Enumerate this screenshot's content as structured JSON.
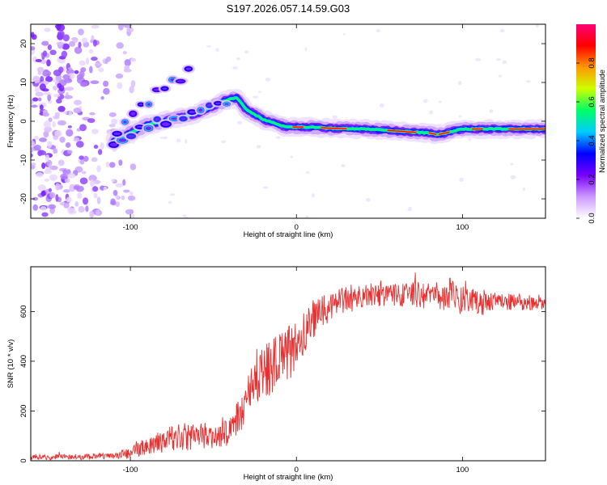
{
  "title": "S197.2026.057.14.59.G03",
  "chart_data": [
    {
      "type": "heatmap",
      "panel": "top",
      "xlabel": "Height of straight line (km)",
      "ylabel": "Frequency (Hz)",
      "xlim": [
        -160,
        150
      ],
      "ylim": [
        -25,
        25
      ],
      "xticks": [
        -100,
        0,
        100
      ],
      "xtick_labels": [
        "-100",
        "0",
        "100"
      ],
      "yticks": [
        -20,
        -10,
        0,
        10,
        20
      ],
      "ytick_labels": [
        "-20",
        "-10",
        "0",
        "10",
        "20"
      ],
      "colorbar": {
        "label": "Normalized spectral amplitude",
        "range": [
          0,
          1
        ],
        "ticks": [
          0.0,
          0.2,
          0.4,
          0.6,
          0.8
        ],
        "tick_labels": [
          "0.0",
          "0.2",
          "0.4",
          "0.6",
          "0.8"
        ],
        "colormap": [
          "#ffffff",
          "#cc99ff",
          "#7700ff",
          "#0000ff",
          "#00ccff",
          "#00ff66",
          "#ccff00",
          "#ff9900",
          "#ff0000",
          "#ff0077"
        ]
      },
      "main_track": [
        [
          -110,
          -5
        ],
        [
          -100,
          -3
        ],
        [
          -90,
          -1
        ],
        [
          -80,
          0
        ],
        [
          -70,
          1
        ],
        [
          -60,
          2
        ],
        [
          -50,
          4
        ],
        [
          -42,
          5.5
        ],
        [
          -36,
          6
        ],
        [
          -30,
          3
        ],
        [
          -20,
          0.5
        ],
        [
          -10,
          -1
        ],
        [
          -5,
          -1.5
        ],
        [
          0,
          -1.5
        ],
        [
          10,
          -1.5
        ],
        [
          20,
          -1.8
        ],
        [
          40,
          -2
        ],
        [
          60,
          -2.5
        ],
        [
          70,
          -2.8
        ],
        [
          80,
          -3
        ],
        [
          85,
          -3.5
        ],
        [
          90,
          -3
        ],
        [
          95,
          -2.5
        ],
        [
          100,
          -2
        ],
        [
          110,
          -2
        ],
        [
          130,
          -2
        ],
        [
          150,
          -2
        ]
      ],
      "upper_track": [
        [
          -108,
          -3
        ],
        [
          -95,
          3
        ],
        [
          -85,
          7
        ],
        [
          -75,
          10
        ],
        [
          -70,
          11
        ],
        [
          -65,
          13
        ]
      ],
      "noise_x_range": [
        -160,
        -110
      ]
    },
    {
      "type": "line",
      "panel": "bottom",
      "xlabel": "Height of straight line (km)",
      "ylabel": "SNR (10 * v/v)",
      "xlim": [
        -160,
        150
      ],
      "ylim": [
        0,
        780
      ],
      "xticks": [
        -100,
        0,
        100
      ],
      "xtick_labels": [
        "-100",
        "0",
        "100"
      ],
      "yticks": [
        0,
        200,
        400,
        600
      ],
      "ytick_labels": [
        "0",
        "200",
        "400",
        "600"
      ],
      "series": [
        {
          "name": "SNR",
          "color": "#e83030",
          "envelope": {
            "x": [
              -160,
              -130,
              -110,
              -100,
              -90,
              -80,
              -70,
              -60,
              -50,
              -40,
              -35,
              -30,
              -25,
              -20,
              -15,
              -10,
              -5,
              0,
              5,
              10,
              15,
              20,
              25,
              30,
              40,
              50,
              60,
              70,
              80,
              90,
              95,
              100,
              110,
              120,
              130,
              140,
              150
            ],
            "y": [
              15,
              15,
              20,
              30,
              60,
              80,
              95,
              100,
              110,
              120,
              170,
              250,
              310,
              350,
              380,
              400,
              430,
              470,
              500,
              560,
              590,
              620,
              640,
              650,
              660,
              670,
              665,
              670,
              660,
              665,
              680,
              650,
              630,
              640,
              640,
              635,
              640
            ]
          },
          "noise": {
            "x": [
              -160,
              -110,
              -100,
              -80,
              -60,
              -40,
              -20,
              0,
              20,
              60,
              90,
              100,
              120,
              150
            ],
            "amplitude": [
              12,
              12,
              25,
              50,
              60,
              60,
              110,
              110,
              60,
              45,
              60,
              70,
              35,
              30
            ]
          }
        }
      ]
    }
  ]
}
